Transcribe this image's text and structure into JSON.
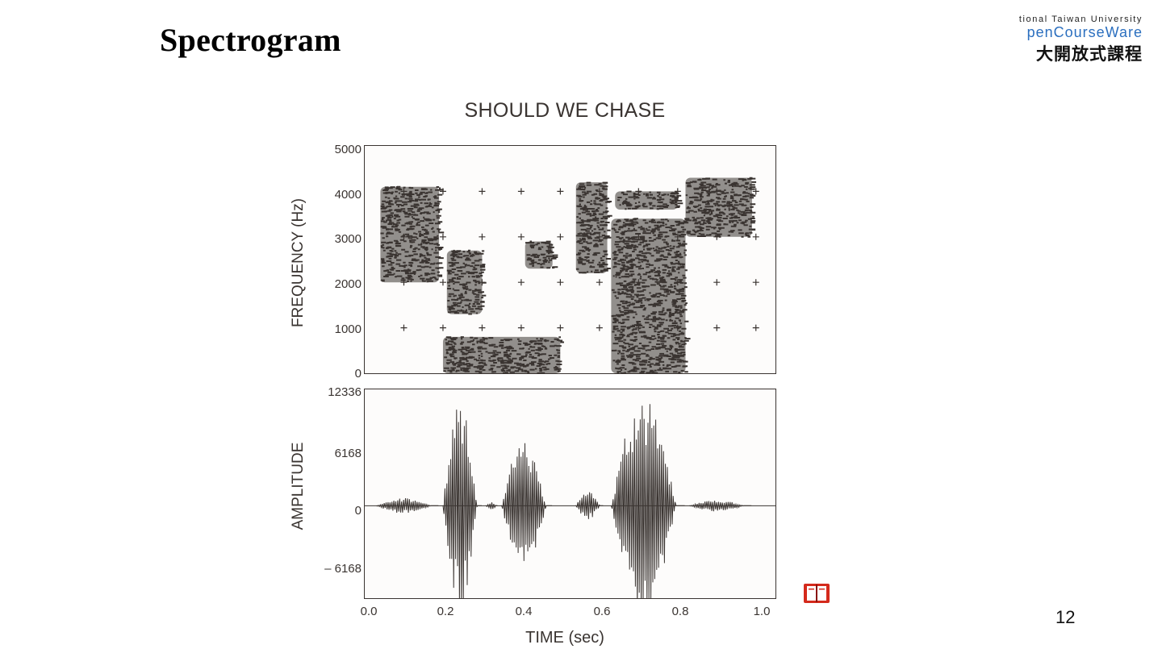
{
  "slide": {
    "title": "Spectrogram",
    "page_number": "12"
  },
  "logo": {
    "line1": "tional Taiwan University",
    "line2": "penCourseWare",
    "line3": "大開放式課程"
  },
  "icons": {
    "book": "book-icon"
  },
  "figure": {
    "title": "SHOULD WE CHASE",
    "colors": {
      "ink": "#3a3431",
      "paper": "#fdfcfb"
    }
  },
  "chart_data": [
    {
      "type": "heatmap",
      "title": "SHOULD WE CHASE",
      "xlabel": "",
      "ylabel": "FREQUENCY (Hz)",
      "xlim": [
        0,
        1.05
      ],
      "ylim": [
        0,
        5000
      ],
      "yticks": [
        "0",
        "1000",
        "2000",
        "3000",
        "4000",
        "5000"
      ],
      "energy_regions": [
        {
          "t": [
            0.04,
            0.19
          ],
          "f": [
            2000,
            4100
          ]
        },
        {
          "t": [
            0.21,
            0.3
          ],
          "f": [
            1300,
            2700
          ]
        },
        {
          "t": [
            0.2,
            0.5
          ],
          "f": [
            0,
            800
          ]
        },
        {
          "t": [
            0.41,
            0.48
          ],
          "f": [
            2300,
            2900
          ]
        },
        {
          "t": [
            0.54,
            0.62
          ],
          "f": [
            2200,
            4200
          ]
        },
        {
          "t": [
            0.63,
            0.82
          ],
          "f": [
            0,
            3400
          ]
        },
        {
          "t": [
            0.64,
            0.8
          ],
          "f": [
            3600,
            4000
          ]
        },
        {
          "t": [
            0.82,
            0.99
          ],
          "f": [
            3000,
            4300
          ]
        }
      ]
    },
    {
      "type": "line",
      "xlabel": "TIME (sec)",
      "ylabel": "AMPLITUDE",
      "xlim": [
        0,
        1.05
      ],
      "ylim": [
        -9800,
        12336
      ],
      "xticks": [
        "0.0",
        "0.2",
        "0.4",
        "0.6",
        "0.8",
        "1.0"
      ],
      "yticks": [
        "12336",
        "6168",
        "0",
        "– 6168"
      ],
      "envelope_segments": [
        {
          "t": [
            0.03,
            0.19
          ],
          "peak": 800
        },
        {
          "t": [
            0.2,
            0.3
          ],
          "peak": 11000
        },
        {
          "t": [
            0.31,
            0.34
          ],
          "peak": 400
        },
        {
          "t": [
            0.35,
            0.48
          ],
          "peak": 7000
        },
        {
          "t": [
            0.54,
            0.61
          ],
          "peak": 1500
        },
        {
          "t": [
            0.63,
            0.82
          ],
          "peak": 11800
        },
        {
          "t": [
            0.83,
            0.99
          ],
          "peak": 600
        }
      ]
    }
  ]
}
